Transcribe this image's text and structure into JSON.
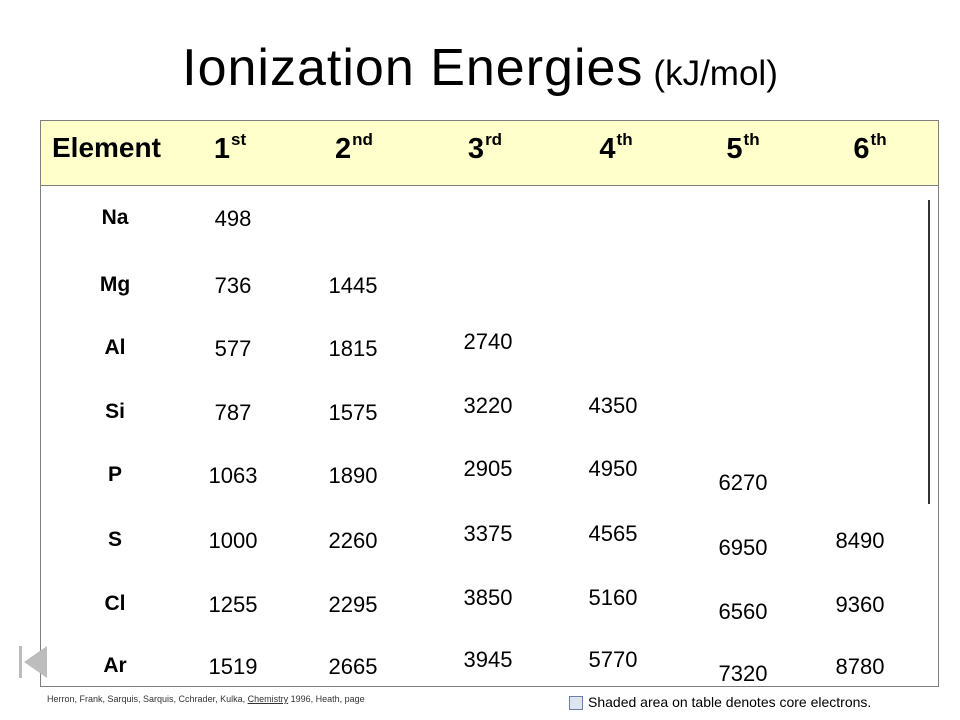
{
  "title": {
    "main": "Ionization Energies",
    "unit": "(kJ/mol)"
  },
  "header": {
    "element": "Element",
    "columns": [
      {
        "num": "1",
        "sup": "st"
      },
      {
        "num": "2",
        "sup": "nd"
      },
      {
        "num": "3",
        "sup": "rd"
      },
      {
        "num": "4",
        "sup": "th"
      },
      {
        "num": "5",
        "sup": "th"
      },
      {
        "num": "6",
        "sup": "th"
      }
    ]
  },
  "rows": [
    {
      "element": "Na",
      "values": [
        "498",
        "",
        "",
        "",
        "",
        ""
      ]
    },
    {
      "element": "Mg",
      "values": [
        "736",
        "1445",
        "",
        "",
        "",
        ""
      ]
    },
    {
      "element": "Al",
      "values": [
        "577",
        "1815",
        "2740",
        "",
        "",
        ""
      ]
    },
    {
      "element": "Si",
      "values": [
        "787",
        "1575",
        "3220",
        "4350",
        "",
        ""
      ]
    },
    {
      "element": "P",
      "values": [
        "1063",
        "1890",
        "2905",
        "4950",
        "6270",
        ""
      ]
    },
    {
      "element": "S",
      "values": [
        "1000",
        "2260",
        "3375",
        "4565",
        "6950",
        "8490"
      ]
    },
    {
      "element": "Cl",
      "values": [
        "1255",
        "2295",
        "3850",
        "5160",
        "6560",
        "9360"
      ]
    },
    {
      "element": "Ar",
      "values": [
        "1519",
        "2665",
        "3945",
        "5770",
        "7320",
        "8780"
      ]
    }
  ],
  "footer": {
    "citation_prefix": "Herron, Frank, Sarquis, Sarquis, Cchrader, Kulka, ",
    "citation_book": "Chemistry",
    "citation_suffix": " 1996, Heath, page",
    "legend": "Shaded area on table denotes core electrons."
  },
  "colors": {
    "header_band": "#ffffcc",
    "legend_swatch": "#dde6f0"
  },
  "icons": {
    "nav": "first-slide-icon"
  }
}
